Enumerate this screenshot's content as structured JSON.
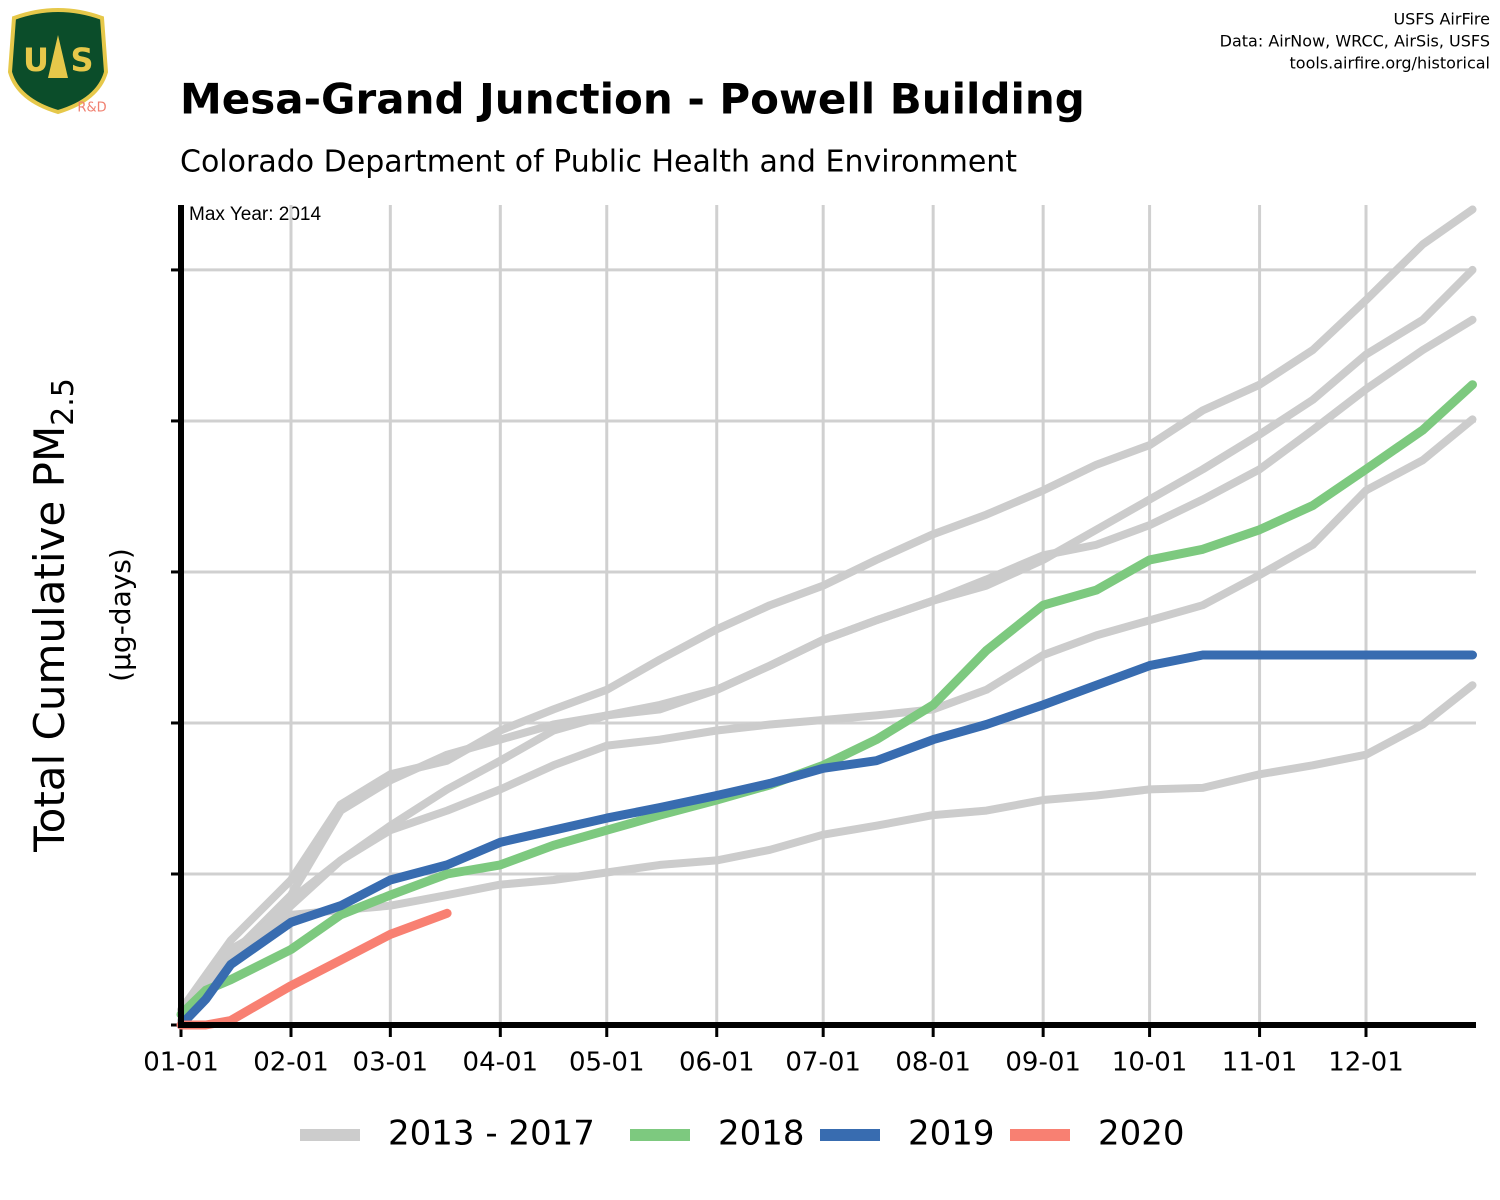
{
  "chart_data": {
    "type": "line",
    "title": "Mesa-Grand Junction - Powell Building",
    "subtitle": "Colorado Department of Public Health and Environment",
    "annotation": "Max Year: 2014",
    "credits": [
      "USFS AirFire",
      "Data: AirNow, WRCC, AirSis, USFS",
      "tools.airfire.org/historical"
    ],
    "logo": {
      "left": "U",
      "right": "S",
      "caption": "R&D"
    },
    "y_label": "Total Cumulative PM",
    "y_label_subscript": "2.5",
    "y_units": "(µg-days)",
    "x": [
      0,
      7,
      14,
      31,
      45,
      59,
      75,
      90,
      105,
      120,
      135,
      151,
      166,
      181,
      196,
      212,
      227,
      243,
      258,
      273,
      288,
      304,
      319,
      334,
      350,
      364
    ],
    "xlim": [
      0,
      365
    ],
    "xticks": [
      {
        "value": 0,
        "label": "01-01"
      },
      {
        "value": 31,
        "label": "02-01"
      },
      {
        "value": 59,
        "label": "03-01"
      },
      {
        "value": 90,
        "label": "04-01"
      },
      {
        "value": 120,
        "label": "05-01"
      },
      {
        "value": 151,
        "label": "06-01"
      },
      {
        "value": 181,
        "label": "07-01"
      },
      {
        "value": 212,
        "label": "08-01"
      },
      {
        "value": 243,
        "label": "09-01"
      },
      {
        "value": 273,
        "label": "10-01"
      },
      {
        "value": 304,
        "label": "11-01"
      },
      {
        "value": 334,
        "label": "12-01"
      }
    ],
    "ylim": [
      0,
      5.43
    ],
    "yticks": [
      0,
      1,
      2,
      3,
      4,
      5
    ],
    "grid": true,
    "legend": "bottom",
    "series": [
      {
        "name": "2013 - 2017",
        "color": "#cccccc",
        "lines": [
          [
            0.1,
            0.33,
            0.56,
            0.96,
            1.46,
            1.66,
            1.75,
            1.95,
            2.09,
            2.22,
            2.42,
            2.62,
            2.78,
            2.91,
            3.08,
            3.25,
            3.38,
            3.54,
            3.71,
            3.84,
            4.07,
            4.24,
            4.47,
            4.8,
            5.17,
            5.4
          ],
          [
            0.07,
            0.26,
            0.46,
            0.86,
            1.42,
            1.62,
            1.79,
            1.89,
            1.99,
            2.05,
            2.12,
            2.22,
            2.38,
            2.55,
            2.68,
            2.81,
            2.91,
            3.08,
            3.28,
            3.48,
            3.68,
            3.91,
            4.14,
            4.44,
            4.67,
            5.0
          ],
          [
            0.07,
            0.26,
            0.43,
            0.83,
            1.09,
            1.32,
            1.56,
            1.75,
            1.95,
            2.05,
            2.09,
            2.22,
            2.38,
            2.55,
            2.68,
            2.81,
            2.95,
            3.11,
            3.18,
            3.31,
            3.48,
            3.68,
            3.94,
            4.21,
            4.47,
            4.67
          ],
          [
            0.03,
            0.23,
            0.4,
            0.79,
            1.09,
            1.29,
            1.42,
            1.56,
            1.72,
            1.85,
            1.89,
            1.95,
            1.99,
            2.02,
            2.05,
            2.09,
            2.22,
            2.45,
            2.58,
            2.68,
            2.78,
            2.98,
            3.18,
            3.54,
            3.74,
            4.01
          ],
          [
            0,
            0.26,
            0.5,
            0.73,
            0.76,
            0.79,
            0.86,
            0.93,
            0.96,
            1.01,
            1.06,
            1.09,
            1.16,
            1.26,
            1.32,
            1.39,
            1.42,
            1.49,
            1.52,
            1.56,
            1.57,
            1.66,
            1.72,
            1.79,
            1.99,
            2.25
          ]
        ]
      },
      {
        "name": "2018",
        "color": "#7dc97f",
        "values": [
          0.07,
          0.23,
          0.3,
          0.5,
          0.73,
          0.86,
          1.0,
          1.06,
          1.19,
          1.29,
          1.39,
          1.49,
          1.59,
          1.72,
          1.89,
          2.12,
          2.48,
          2.78,
          2.88,
          3.08,
          3.15,
          3.28,
          3.44,
          3.68,
          3.94,
          4.24
        ]
      },
      {
        "name": "2019",
        "color": "#386cb0",
        "values": [
          0,
          0.17,
          0.4,
          0.68,
          0.79,
          0.96,
          1.06,
          1.21,
          1.29,
          1.37,
          1.44,
          1.52,
          1.6,
          1.7,
          1.75,
          1.89,
          1.99,
          2.12,
          2.25,
          2.38,
          2.45,
          2.45,
          2.45,
          2.45,
          2.45,
          2.45
        ]
      },
      {
        "name": "2020",
        "color": "#f88072",
        "values": [
          0,
          0,
          0.03,
          0.26,
          0.43,
          0.6,
          0.74,
          null,
          null,
          null,
          null,
          null,
          null,
          null,
          null,
          null,
          null,
          null,
          null,
          null,
          null,
          null,
          null,
          null,
          null,
          null
        ]
      }
    ]
  }
}
